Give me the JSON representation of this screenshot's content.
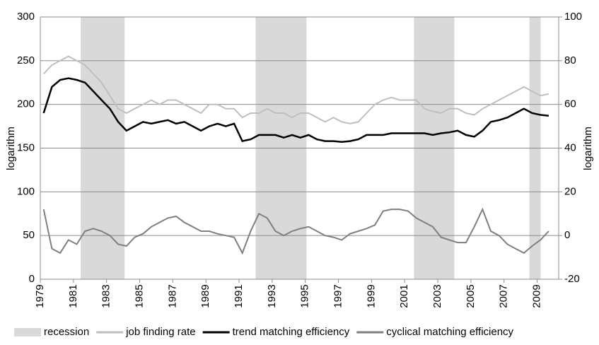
{
  "chart_data": {
    "type": "line",
    "y_label": "logarithm",
    "y2_label": "logarithm",
    "x": [
      1979.2,
      1979.7,
      1980.2,
      1980.7,
      1981.2,
      1981.7,
      1982.2,
      1982.7,
      1983.2,
      1983.7,
      1984.2,
      1984.7,
      1985.2,
      1985.7,
      1986.2,
      1986.7,
      1987.2,
      1987.7,
      1988.2,
      1988.7,
      1989.2,
      1989.7,
      1990.2,
      1990.7,
      1991.2,
      1991.7,
      1992.2,
      1992.7,
      1993.2,
      1993.7,
      1994.2,
      1994.7,
      1995.2,
      1995.7,
      1996.2,
      1996.7,
      1997.2,
      1997.7,
      1998.2,
      1998.7,
      1999.2,
      1999.7,
      2000.2,
      2000.7,
      2001.2,
      2001.7,
      2002.2,
      2002.7,
      2003.2,
      2003.7,
      2004.2,
      2004.7,
      2005.2,
      2005.7,
      2006.2,
      2006.7,
      2007.2,
      2007.7,
      2008.2,
      2008.7,
      2009.2,
      2009.7
    ],
    "xlim": [
      1979,
      2010.3
    ],
    "xticks": [
      1979,
      1981,
      1983,
      1985,
      1987,
      1989,
      1991,
      1993,
      1995,
      1997,
      1999,
      2001,
      2003,
      2005,
      2007,
      2009
    ],
    "ylim": [
      0,
      300
    ],
    "yticks": [
      0,
      50,
      100,
      150,
      200,
      250,
      300
    ],
    "y2lim": [
      -20,
      100
    ],
    "y2ticks": [
      -20,
      0,
      20,
      40,
      60,
      80,
      100
    ],
    "grid": true,
    "recessions": {
      "name": "recession",
      "color": "#d9d9d9",
      "periods": [
        [
          1981.44,
          1984.09
        ],
        [
          1992.0,
          1995.07
        ],
        [
          2001.56,
          2004.0
        ],
        [
          2008.53,
          2009.21
        ]
      ]
    },
    "series": [
      {
        "name": "job finding rate",
        "color": "#bfbfbf",
        "values": [
          235,
          245,
          250,
          255,
          250,
          245,
          235,
          225,
          210,
          195,
          190,
          195,
          200,
          205,
          200,
          205,
          205,
          200,
          195,
          190,
          200,
          200,
          195,
          195,
          185,
          190,
          190,
          195,
          190,
          190,
          185,
          190,
          190,
          185,
          180,
          185,
          180,
          178,
          180,
          190,
          200,
          205,
          208,
          205,
          205,
          205,
          195,
          192,
          190,
          195,
          195,
          190,
          188,
          195,
          200,
          205,
          210,
          215,
          220,
          215,
          210,
          212
        ]
      },
      {
        "name": "trend matching efficiency",
        "color": "#000000",
        "values": [
          190,
          220,
          228,
          230,
          228,
          225,
          215,
          205,
          195,
          180,
          170,
          175,
          180,
          178,
          180,
          182,
          178,
          180,
          175,
          170,
          175,
          178,
          175,
          178,
          158,
          160,
          165,
          165,
          165,
          162,
          165,
          162,
          165,
          160,
          158,
          158,
          157,
          158,
          160,
          165,
          165,
          165,
          167,
          167,
          167,
          167,
          167,
          165,
          167,
          168,
          170,
          165,
          163,
          170,
          180,
          182,
          185,
          190,
          195,
          190,
          188,
          187
        ]
      },
      {
        "name": "cyclical matching efficiency",
        "color": "#7f7f7f",
        "axis": "y2",
        "values": [
          12,
          -6,
          -8,
          -2,
          -4,
          2,
          3.2,
          2,
          0,
          -4,
          -4.8,
          -0.8,
          0.8,
          4,
          6,
          8,
          8.8,
          6,
          4,
          2,
          2,
          0.8,
          0,
          -0.8,
          -8,
          2,
          10,
          8,
          2,
          0,
          2,
          3.2,
          4,
          2,
          0,
          -0.8,
          -2,
          0.8,
          2,
          3.2,
          4.8,
          11.2,
          12,
          12,
          11.2,
          8,
          6,
          4,
          -0.8,
          -2,
          -3.2,
          -3.2,
          4,
          12,
          2,
          0,
          -4,
          -6,
          -8,
          -4.8,
          -2,
          2
        ]
      }
    ]
  }
}
